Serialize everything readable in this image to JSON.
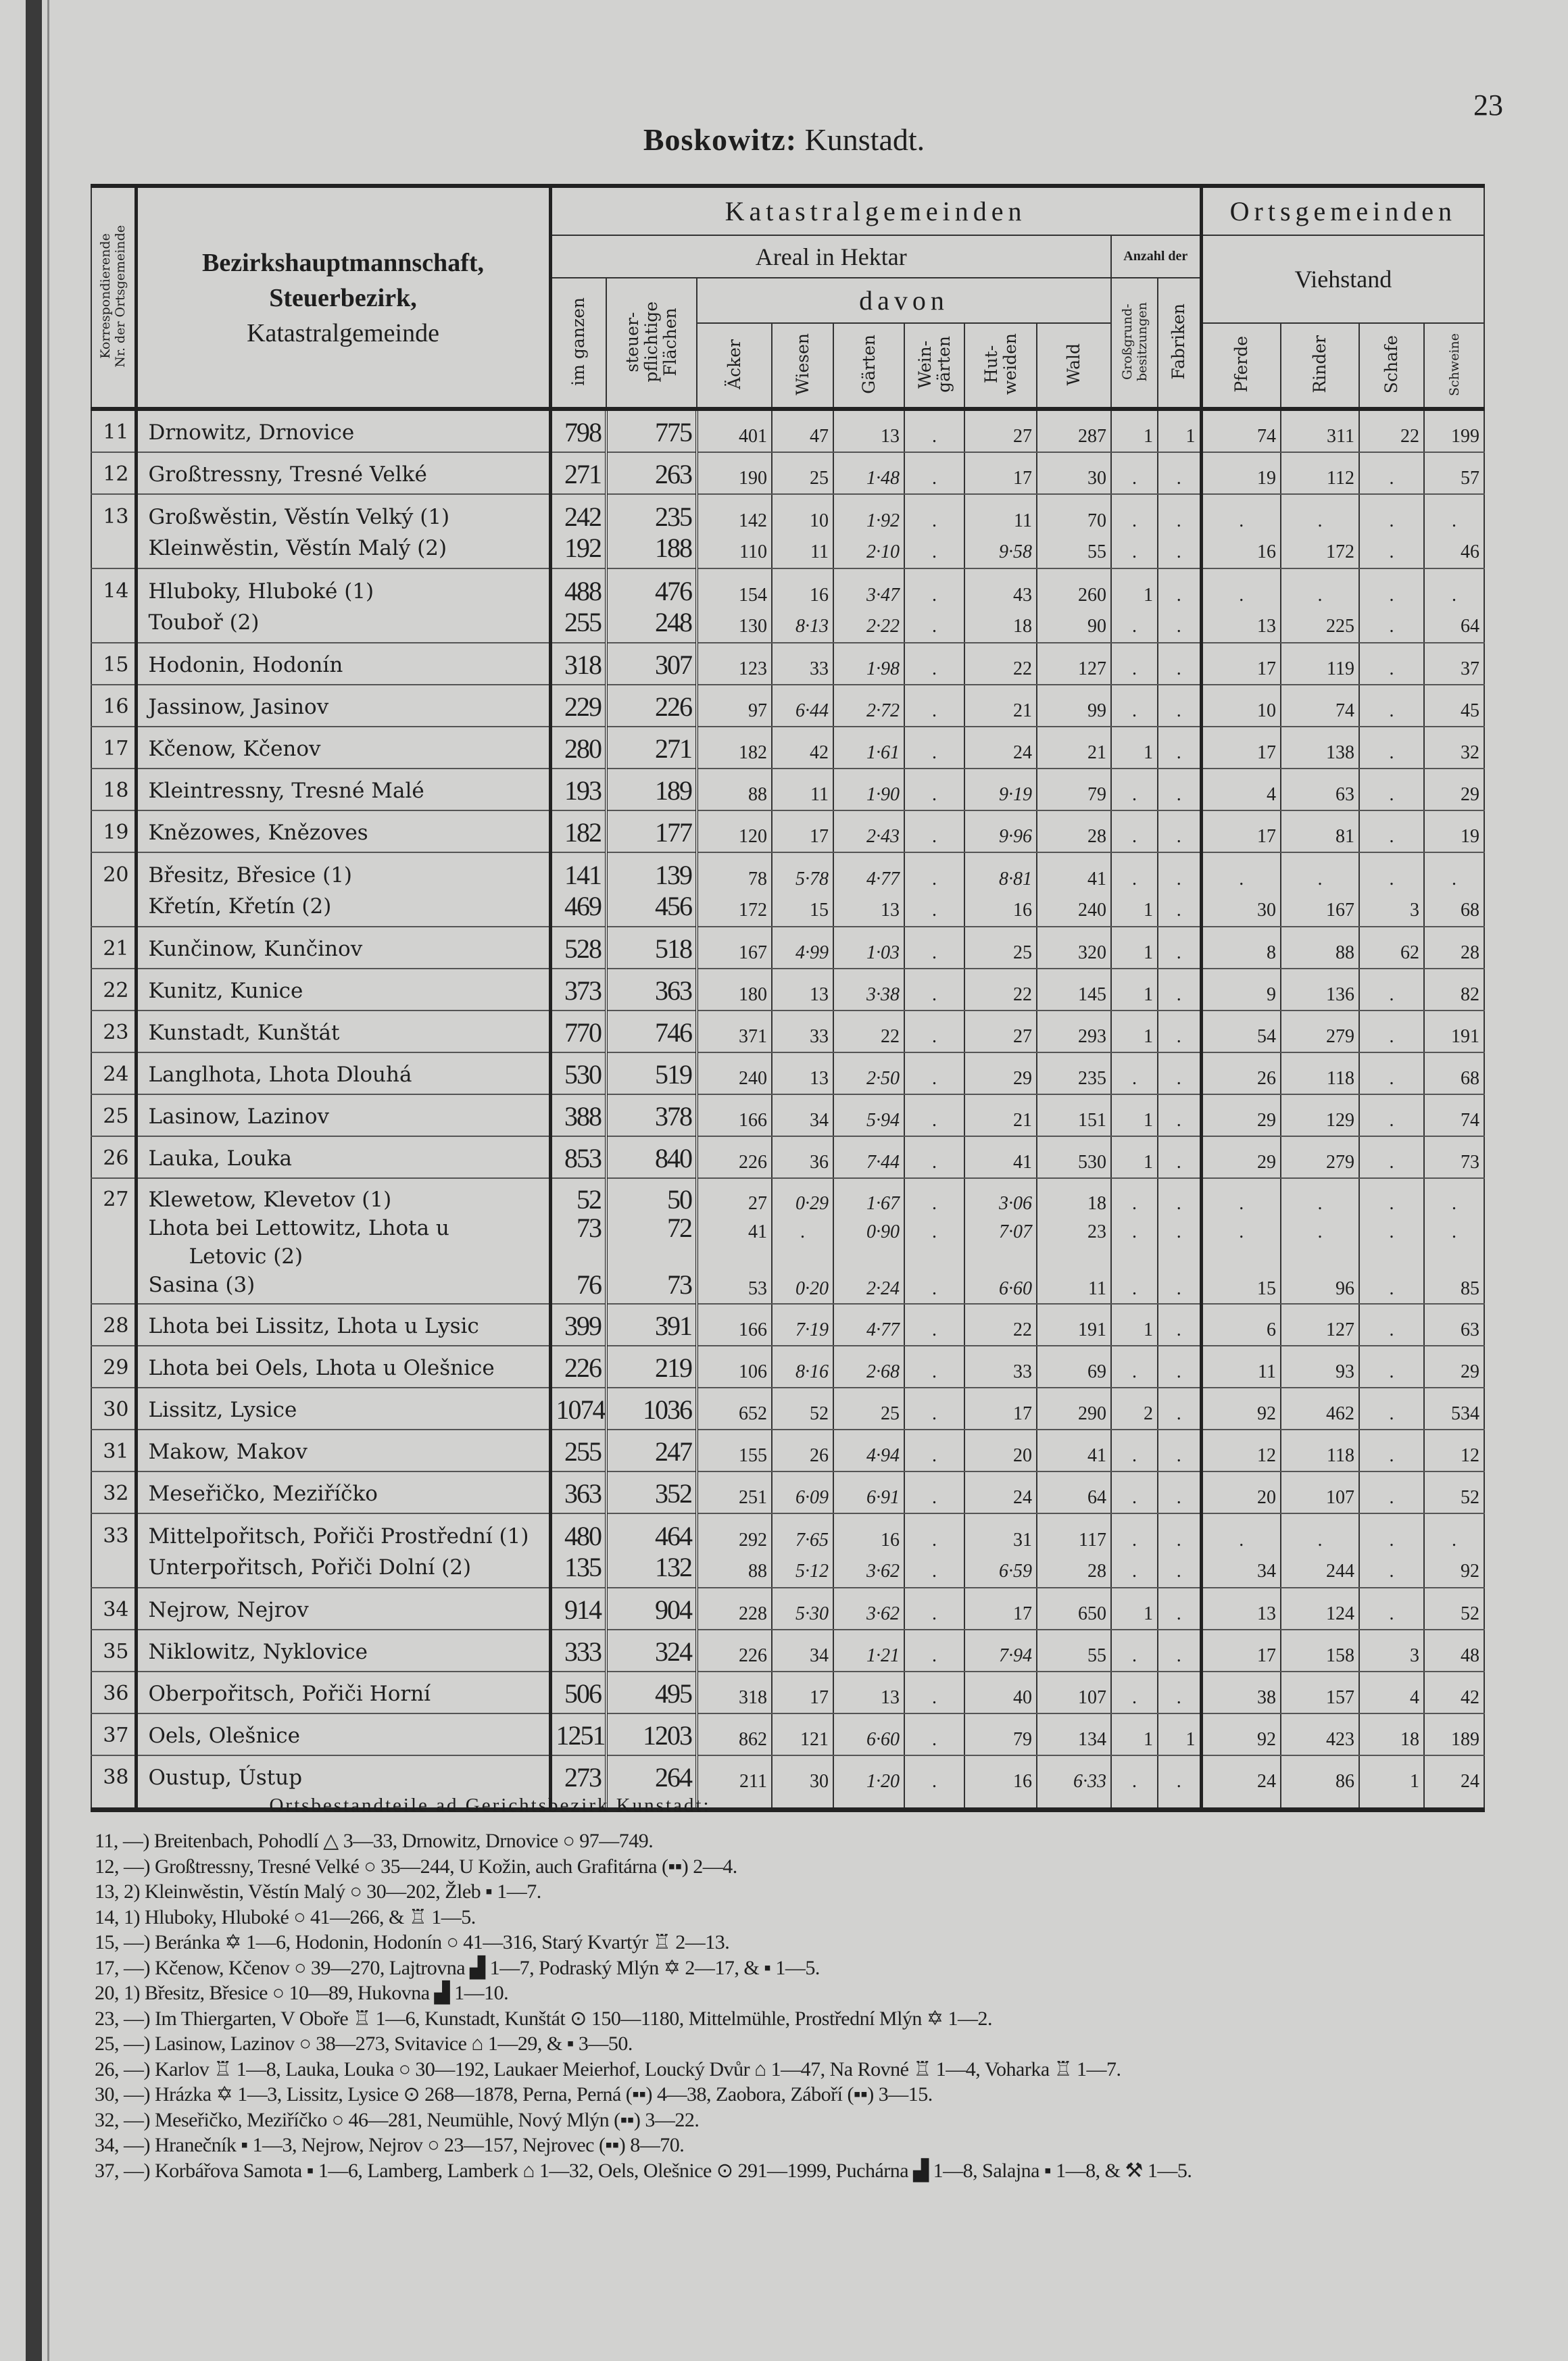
{
  "page": {
    "title_bold": "Boskowitz:",
    "title_rest": "Kunstadt.",
    "page_number": "23"
  },
  "header": {
    "nr": "Korrespondierende\nNr. der Ortsgemeinde",
    "name": [
      "Bezirkshauptmannschaft,",
      "Steuerbezirk,",
      "Katastralgemeinde"
    ],
    "katastral": "Katastralgemeinden",
    "orts": "Ortsgemeinden",
    "areal": "Areal in Hektar",
    "anzahl": "Anzahl der",
    "viehstand": "Viehstand",
    "davon": "davon",
    "im_ganzen": "im ganzen",
    "steuer": "steuer-\npflichtige\nFlächen",
    "aecker": "Äcker",
    "wiesen": "Wiesen",
    "gaerten": "Gärten",
    "weingaerten": "Wein-\ngärten",
    "hutweiden": "Hut-\nweiden",
    "wald": "Wald",
    "grossgrund": "Großgrund-\nbesitzungen",
    "fabriken": "Fabriken",
    "pferde": "Pferde",
    "rinder": "Rinder",
    "schafe": "Schafe",
    "schweine": "Schweine"
  },
  "rows": [
    {
      "nr": "11",
      "lines": [
        {
          "name": "Drnowitz, Drnovice",
          "values": [
            "798",
            "775",
            "401",
            "47",
            "13",
            ".",
            "27",
            "287",
            "1",
            "1",
            "74",
            "311",
            "22",
            "199"
          ]
        }
      ]
    },
    {
      "nr": "12",
      "lines": [
        {
          "name": "Großtressny, Tresné Velké",
          "values": [
            "271",
            "263",
            "190",
            "25",
            "1·48",
            ".",
            "17",
            "30",
            ".",
            ".",
            "19",
            "112",
            ".",
            "57"
          ]
        }
      ]
    },
    {
      "nr": "13",
      "lines": [
        {
          "name": "Großwěstin, Věstín Velký (1)",
          "values": [
            "242",
            "235",
            "142",
            "10",
            "1·92",
            ".",
            "11",
            "70",
            ".",
            ".",
            ".",
            ".",
            ".",
            "."
          ]
        },
        {
          "name": "Kleinwěstin, Věstín Malý (2)",
          "values": [
            "192",
            "188",
            "110",
            "11",
            "2·10",
            ".",
            "9·58",
            "55",
            ".",
            ".",
            "16",
            "172",
            ".",
            "46"
          ]
        }
      ]
    },
    {
      "nr": "14",
      "lines": [
        {
          "name": "Hluboky, Hluboké (1)",
          "values": [
            "488",
            "476",
            "154",
            "16",
            "3·47",
            ".",
            "43",
            "260",
            "1",
            ".",
            ".",
            ".",
            ".",
            "."
          ]
        },
        {
          "name": "Touboř (2)",
          "values": [
            "255",
            "248",
            "130",
            "8·13",
            "2·22",
            ".",
            "18",
            "90",
            ".",
            ".",
            "13",
            "225",
            ".",
            "64"
          ]
        }
      ]
    },
    {
      "nr": "15",
      "lines": [
        {
          "name": "Hodonin, Hodonín",
          "values": [
            "318",
            "307",
            "123",
            "33",
            "1·98",
            ".",
            "22",
            "127",
            ".",
            ".",
            "17",
            "119",
            ".",
            "37"
          ]
        }
      ]
    },
    {
      "nr": "16",
      "lines": [
        {
          "name": "Jassinow, Jasinov",
          "values": [
            "229",
            "226",
            "97",
            "6·44",
            "2·72",
            ".",
            "21",
            "99",
            ".",
            ".",
            "10",
            "74",
            ".",
            "45"
          ]
        }
      ]
    },
    {
      "nr": "17",
      "lines": [
        {
          "name": "Kčenow, Kčenov",
          "values": [
            "280",
            "271",
            "182",
            "42",
            "1·61",
            ".",
            "24",
            "21",
            "1",
            ".",
            "17",
            "138",
            ".",
            "32"
          ]
        }
      ]
    },
    {
      "nr": "18",
      "lines": [
        {
          "name": "Kleintressny, Tresné Malé",
          "values": [
            "193",
            "189",
            "88",
            "11",
            "1·90",
            ".",
            "9·19",
            "79",
            ".",
            ".",
            "4",
            "63",
            ".",
            "29"
          ]
        }
      ]
    },
    {
      "nr": "19",
      "lines": [
        {
          "name": "Knězowes, Knězoves",
          "values": [
            "182",
            "177",
            "120",
            "17",
            "2·43",
            ".",
            "9·96",
            "28",
            ".",
            ".",
            "17",
            "81",
            ".",
            "19"
          ]
        }
      ]
    },
    {
      "nr": "20",
      "lines": [
        {
          "name": "Břesitz, Břesice (1)",
          "values": [
            "141",
            "139",
            "78",
            "5·78",
            "4·77",
            ".",
            "8·81",
            "41",
            ".",
            ".",
            ".",
            ".",
            ".",
            "."
          ]
        },
        {
          "name": "Křetín, Křetín (2)",
          "values": [
            "469",
            "456",
            "172",
            "15",
            "13",
            ".",
            "16",
            "240",
            "1",
            ".",
            "30",
            "167",
            "3",
            "68"
          ]
        }
      ]
    },
    {
      "nr": "21",
      "lines": [
        {
          "name": "Kunčinow, Kunčinov",
          "values": [
            "528",
            "518",
            "167",
            "4·99",
            "1·03",
            ".",
            "25",
            "320",
            "1",
            ".",
            "8",
            "88",
            "62",
            "28"
          ]
        }
      ]
    },
    {
      "nr": "22",
      "lines": [
        {
          "name": "Kunitz, Kunice",
          "values": [
            "373",
            "363",
            "180",
            "13",
            "3·38",
            ".",
            "22",
            "145",
            "1",
            ".",
            "9",
            "136",
            ".",
            "82"
          ]
        }
      ]
    },
    {
      "nr": "23",
      "lines": [
        {
          "name": "Kunstadt, Kunštát",
          "values": [
            "770",
            "746",
            "371",
            "33",
            "22",
            ".",
            "27",
            "293",
            "1",
            ".",
            "54",
            "279",
            ".",
            "191"
          ]
        }
      ]
    },
    {
      "nr": "24",
      "lines": [
        {
          "name": "Langlhota, Lhota Dlouhá",
          "values": [
            "530",
            "519",
            "240",
            "13",
            "2·50",
            ".",
            "29",
            "235",
            ".",
            ".",
            "26",
            "118",
            ".",
            "68"
          ]
        }
      ]
    },
    {
      "nr": "25",
      "lines": [
        {
          "name": "Lasinow, Lazinov",
          "values": [
            "388",
            "378",
            "166",
            "34",
            "5·94",
            ".",
            "21",
            "151",
            "1",
            ".",
            "29",
            "129",
            ".",
            "74"
          ]
        }
      ]
    },
    {
      "nr": "26",
      "lines": [
        {
          "name": "Lauka, Louka",
          "values": [
            "853",
            "840",
            "226",
            "36",
            "7·44",
            ".",
            "41",
            "530",
            "1",
            ".",
            "29",
            "279",
            ".",
            "73"
          ]
        }
      ]
    },
    {
      "nr": "27",
      "lines": [
        {
          "name": "Klewetow, Klevetov (1)",
          "values": [
            "52",
            "50",
            "27",
            "0·29",
            "1·67",
            ".",
            "3·06",
            "18",
            ".",
            ".",
            ".",
            ".",
            ".",
            "."
          ]
        },
        {
          "name": "Lhota bei Lettowitz, Lhota u",
          "values": [
            "73",
            "72",
            "41",
            ".",
            "0·90",
            ".",
            "7·07",
            "23",
            ".",
            ".",
            ".",
            ".",
            ".",
            "."
          ]
        },
        {
          "name": "Letovic (2)",
          "values": []
        },
        {
          "name": "Sasina (3)",
          "values": [
            "76",
            "73",
            "53",
            "0·20",
            "2·24",
            ".",
            "6·60",
            "11",
            ".",
            ".",
            "15",
            "96",
            ".",
            "85"
          ]
        }
      ]
    },
    {
      "nr": "28",
      "lines": [
        {
          "name": "Lhota bei Lissitz, Lhota u Lysic",
          "values": [
            "399",
            "391",
            "166",
            "7·19",
            "4·77",
            ".",
            "22",
            "191",
            "1",
            ".",
            "6",
            "127",
            ".",
            "63"
          ]
        }
      ]
    },
    {
      "nr": "29",
      "lines": [
        {
          "name": "Lhota bei Oels, Lhota u Olešnice",
          "values": [
            "226",
            "219",
            "106",
            "8·16",
            "2·68",
            ".",
            "33",
            "69",
            ".",
            ".",
            "11",
            "93",
            ".",
            "29"
          ]
        }
      ]
    },
    {
      "nr": "30",
      "lines": [
        {
          "name": "Lissitz, Lysice",
          "values": [
            "1074",
            "1036",
            "652",
            "52",
            "25",
            ".",
            "17",
            "290",
            "2",
            ".",
            "92",
            "462",
            ".",
            "534"
          ]
        }
      ]
    },
    {
      "nr": "31",
      "lines": [
        {
          "name": "Makow, Makov",
          "values": [
            "255",
            "247",
            "155",
            "26",
            "4·94",
            ".",
            "20",
            "41",
            ".",
            ".",
            "12",
            "118",
            ".",
            "12"
          ]
        }
      ]
    },
    {
      "nr": "32",
      "lines": [
        {
          "name": "Meseřičko, Meziříčko",
          "values": [
            "363",
            "352",
            "251",
            "6·09",
            "6·91",
            ".",
            "24",
            "64",
            ".",
            ".",
            "20",
            "107",
            ".",
            "52"
          ]
        }
      ]
    },
    {
      "nr": "33",
      "lines": [
        {
          "name": "Mittelpořitsch, Pořiči Prostřední (1)",
          "values": [
            "480",
            "464",
            "292",
            "7·65",
            "16",
            ".",
            "31",
            "117",
            ".",
            ".",
            ".",
            ".",
            ".",
            "."
          ]
        },
        {
          "name": "Unterpořitsch, Pořiči Dolní (2)",
          "values": [
            "135",
            "132",
            "88",
            "5·12",
            "3·62",
            ".",
            "6·59",
            "28",
            ".",
            ".",
            "34",
            "244",
            ".",
            "92"
          ]
        }
      ]
    },
    {
      "nr": "34",
      "lines": [
        {
          "name": "Nejrow, Nejrov",
          "values": [
            "914",
            "904",
            "228",
            "5·30",
            "3·62",
            ".",
            "17",
            "650",
            "1",
            ".",
            "13",
            "124",
            ".",
            "52"
          ]
        }
      ]
    },
    {
      "nr": "35",
      "lines": [
        {
          "name": "Niklowitz, Nyklovice",
          "values": [
            "333",
            "324",
            "226",
            "34",
            "1·21",
            ".",
            "7·94",
            "55",
            ".",
            ".",
            "17",
            "158",
            "3",
            "48"
          ]
        }
      ]
    },
    {
      "nr": "36",
      "lines": [
        {
          "name": "Oberpořitsch, Pořiči Horní",
          "values": [
            "506",
            "495",
            "318",
            "17",
            "13",
            ".",
            "40",
            "107",
            ".",
            ".",
            "38",
            "157",
            "4",
            "42"
          ]
        }
      ]
    },
    {
      "nr": "37",
      "lines": [
        {
          "name": "Oels, Olešnice",
          "values": [
            "1251",
            "1203",
            "862",
            "121",
            "6·60",
            ".",
            "79",
            "134",
            "1",
            "1",
            "92",
            "423",
            "18",
            "189"
          ]
        }
      ]
    },
    {
      "nr": "38",
      "lines": [
        {
          "name": "Oustup, Ústup",
          "values": [
            "273",
            "264",
            "211",
            "30",
            "1·20",
            ".",
            "16",
            "6·33",
            ".",
            ".",
            "24",
            "86",
            "1",
            "24"
          ]
        }
      ]
    }
  ],
  "footnotes": {
    "heading": "Ortsbestandteile ad Gerichtsbezirk Kunstadt:",
    "lines": [
      "11, —) Breitenbach, Pohodlí △ 3—33, Drnowitz, Drnovice ○ 97—749.",
      "12, —) Großtressny, Tresné Velké ○ 35—244, U Kožin, auch Grafitárna (▪▪) 2—4.",
      "13,  2) Kleinwěstin, Věstín Malý ○ 30—202, Žleb ▪ 1—7.",
      "14,  1) Hluboky, Hluboké ○ 41—266, & ♖ 1—5.",
      "15, —) Beránka ✡ 1—6, Hodonin, Hodonín ○ 41—316, Starý Kvartýr ♖ 2—13.",
      "17, —) Kčenow, Kčenov ○ 39—270, Lajtrovna ▟ 1—7, Podraský Mlýn ✡ 2—17, & ▪ 1—5.",
      "20,  1) Břesitz, Břesice ○ 10—89, Hukovna ▟ 1—10.",
      "23, —) Im Thiergarten, V Oboře ♖ 1—6, Kunstadt, Kunštát ⊙ 150—1180, Mittelmühle, Prostřední Mlýn ✡ 1—2.",
      "25, —) Lasinow, Lazinov ○ 38—273, Svitavice ⌂ 1—29, & ▪ 3—50.",
      "26, —) Karlov ♖ 1—8, Lauka, Louka ○ 30—192, Laukaer Meierhof, Loucký Dvůr ⌂ 1—47, Na Rovné ♖ 1—4, Voharka ♖ 1—7.",
      "30, —) Hrázka ✡ 1—3, Lissitz, Lysice ⊙ 268—1878, Perna, Perná (▪▪) 4—38, Zaobora, Záboří (▪▪) 3—15.",
      "32, —) Meseřičko, Meziříčko ○ 46—281, Neumühle, Nový Mlýn (▪▪) 3—22.",
      "34, —) Hranečník ▪ 1—3, Nejrow, Nejrov ○ 23—157, Nejrovec (▪▪) 8—70.",
      "37, —) Korbářova Samota ▪ 1—6, Lamberg, Lamberk ⌂ 1—32, Oels, Olešnice ⊙ 291—1999, Puchárna ▟ 1—8, Salajna ▪ 1—8, & ⚒ 1—5."
    ]
  }
}
